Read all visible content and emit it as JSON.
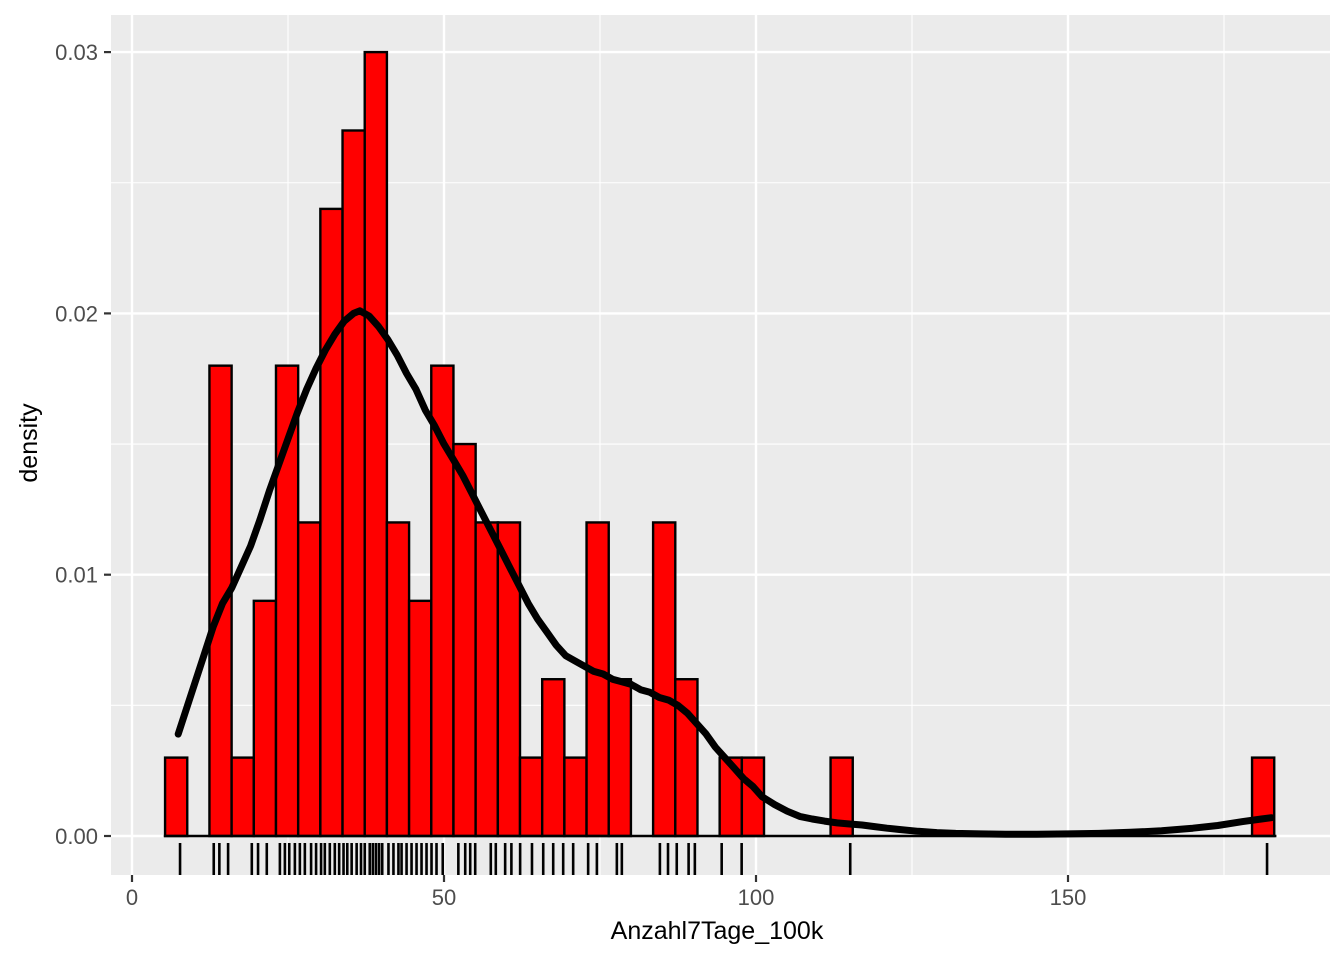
{
  "chart_data": {
    "type": "histogram",
    "title": "",
    "xlabel": "Anzahl7Tage_100k",
    "ylabel": "density",
    "legend": "none",
    "grid": "on",
    "x_axis": {
      "tick_values": [
        0,
        50,
        100,
        150
      ],
      "tick_labels": [
        "0",
        "50",
        "100",
        "150"
      ],
      "minor_tick_values": [
        25,
        75,
        125,
        175
      ],
      "range": [
        -3.6,
        192.0
      ]
    },
    "y_axis": {
      "tick_values": [
        0,
        0.01,
        0.02,
        0.03
      ],
      "tick_labels": [
        "0.00",
        "0.01",
        "0.02",
        "0.03"
      ],
      "minor_tick_values": [
        0.005,
        0.015,
        0.025
      ],
      "range": [
        -0.0015,
        0.0314
      ]
    },
    "histogram": {
      "bin_start": 5.3,
      "bin_width": 3.555,
      "densities": [
        0.003,
        0,
        0.018,
        0.003,
        0.009,
        0.018,
        0.012,
        0.024,
        0.027,
        0.03,
        0.012,
        0.009,
        0.018,
        0.015,
        0.012,
        0.012,
        0.003,
        0.006,
        0.003,
        0.012,
        0.006,
        0,
        0.012,
        0.006,
        0,
        0.003,
        0.003,
        0,
        0,
        0,
        0.003,
        0,
        0,
        0,
        0,
        0,
        0,
        0,
        0,
        0,
        0,
        0,
        0,
        0,
        0,
        0,
        0,
        0,
        0,
        0.003
      ]
    },
    "density_curve": {
      "points": [
        [
          7.4,
          0.0039
        ],
        [
          8.5,
          0.0047
        ],
        [
          10,
          0.0058
        ],
        [
          11.5,
          0.0069
        ],
        [
          13,
          0.008
        ],
        [
          14.5,
          0.0089
        ],
        [
          16,
          0.0095
        ],
        [
          17.5,
          0.0103
        ],
        [
          19,
          0.0111
        ],
        [
          20.5,
          0.0121
        ],
        [
          22,
          0.0132
        ],
        [
          23.5,
          0.0142
        ],
        [
          25,
          0.0152
        ],
        [
          26.5,
          0.0162
        ],
        [
          28,
          0.0171
        ],
        [
          29.5,
          0.0179
        ],
        [
          31,
          0.0186
        ],
        [
          32.5,
          0.0192
        ],
        [
          34,
          0.0197
        ],
        [
          35.5,
          0.02
        ],
        [
          36.5,
          0.0201
        ],
        [
          38,
          0.0199
        ],
        [
          39.5,
          0.0195
        ],
        [
          41,
          0.019
        ],
        [
          42.5,
          0.0184
        ],
        [
          44,
          0.0177
        ],
        [
          45.5,
          0.0171
        ],
        [
          47,
          0.0163
        ],
        [
          48.5,
          0.0157
        ],
        [
          50,
          0.015
        ],
        [
          51.5,
          0.0144
        ],
        [
          53,
          0.0138
        ],
        [
          54.5,
          0.0131
        ],
        [
          56,
          0.0124
        ],
        [
          57.5,
          0.0117
        ],
        [
          59,
          0.011
        ],
        [
          60.5,
          0.0103
        ],
        [
          62,
          0.0096
        ],
        [
          63.5,
          0.0089
        ],
        [
          65,
          0.0083
        ],
        [
          66.5,
          0.0078
        ],
        [
          68,
          0.0073
        ],
        [
          69.5,
          0.0069
        ],
        [
          71,
          0.0067
        ],
        [
          72.5,
          0.0065
        ],
        [
          74,
          0.0063
        ],
        [
          75.5,
          0.0062
        ],
        [
          77,
          0.006
        ],
        [
          78.5,
          0.0059
        ],
        [
          80,
          0.0058
        ],
        [
          81.5,
          0.0056
        ],
        [
          83,
          0.0055
        ],
        [
          84.5,
          0.0053
        ],
        [
          86,
          0.0052
        ],
        [
          87.5,
          0.005
        ],
        [
          89,
          0.0047
        ],
        [
          90.5,
          0.0043
        ],
        [
          92,
          0.0039
        ],
        [
          93.5,
          0.0034
        ],
        [
          95,
          0.003
        ],
        [
          96.5,
          0.0026
        ],
        [
          98,
          0.0022
        ],
        [
          99.5,
          0.0019
        ],
        [
          101,
          0.0015
        ],
        [
          103,
          0.0012
        ],
        [
          105,
          0.00095
        ],
        [
          107,
          0.00075
        ],
        [
          109,
          0.00065
        ],
        [
          111,
          0.00057
        ],
        [
          113,
          0.0005
        ],
        [
          115,
          0.00046
        ],
        [
          117,
          0.00042
        ],
        [
          119,
          0.00036
        ],
        [
          121,
          0.0003
        ],
        [
          123,
          0.00025
        ],
        [
          126,
          0.00018
        ],
        [
          129,
          0.00013
        ],
        [
          132,
          0.0001
        ],
        [
          136,
          8e-05
        ],
        [
          140,
          7e-05
        ],
        [
          145,
          7e-05
        ],
        [
          150,
          8e-05
        ],
        [
          155,
          0.0001
        ],
        [
          160,
          0.00014
        ],
        [
          165,
          0.0002
        ],
        [
          170,
          0.0003
        ],
        [
          174,
          0.0004
        ],
        [
          178,
          0.00055
        ],
        [
          181,
          0.00065
        ],
        [
          182.6,
          0.0007
        ]
      ]
    },
    "rug": {
      "positions": [
        7.7,
        13.1,
        14.0,
        15.4,
        19.2,
        20.2,
        21.6,
        23.7,
        24.5,
        25.2,
        26.1,
        26.9,
        27.7,
        28.7,
        29.5,
        30.3,
        30.9,
        31.7,
        32.5,
        33.2,
        33.9,
        34.5,
        35.2,
        36.0,
        36.7,
        37.3,
        38.1,
        38.6,
        39.1,
        39.6,
        40.1,
        41.1,
        41.9,
        42.7,
        43.2,
        44.0,
        44.8,
        45.6,
        46.4,
        47.2,
        48.0,
        48.8,
        49.8,
        52.3,
        53.4,
        54.2,
        55.0,
        57.5,
        58.3,
        59.8,
        60.8,
        62.2,
        64.1,
        65.9,
        67.5,
        69.1,
        70.7,
        73.1,
        74.5,
        77.7,
        78.5,
        84.6,
        85.9,
        87.3,
        89.2,
        90.2,
        94.5,
        97.7,
        115.1,
        181.9
      ]
    },
    "baseline": {
      "y": 0,
      "x_from": 5.1,
      "x_to": 183.4
    },
    "colors": {
      "bar_fill": "#FF0000",
      "bar_stroke": "#000000",
      "curve": "#000000",
      "rug": "#000000",
      "panel_bg": "#EBEBEB",
      "grid": "#FFFFFF",
      "tick_label": "#4D4D4D",
      "tick_mark": "#333333",
      "axis_title": "#000000"
    }
  }
}
